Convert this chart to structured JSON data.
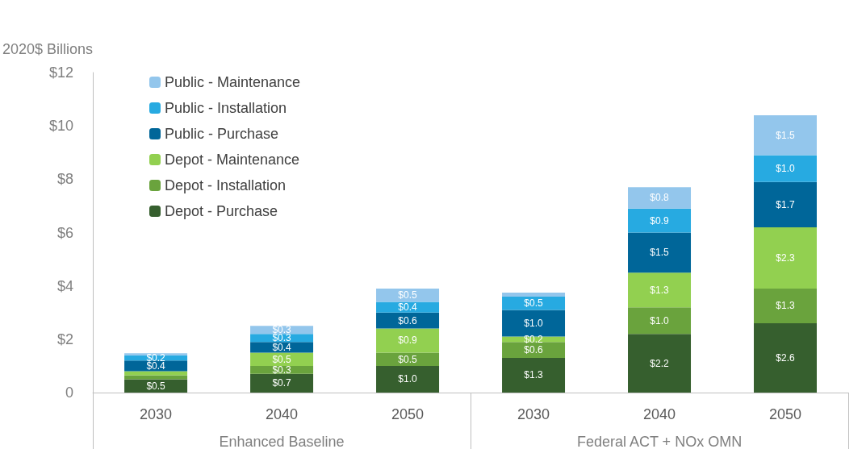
{
  "chart_data": {
    "type": "bar",
    "stacked": true,
    "ylabel": "2020$ Billions",
    "categories": [
      "2030",
      "2040",
      "2050",
      "2030",
      "2040",
      "2050"
    ],
    "annotations": [
      "Enhanced Baseline",
      "Federal ACT + NOx OMN"
    ],
    "series": [
      {
        "name": "Depot - Purchase",
        "color": "#365f2e",
        "values": [
          0.5,
          0.7,
          1.0,
          1.3,
          2.2,
          2.6
        ],
        "value_labels": [
          "$0.5",
          "$0.7",
          "$1.0",
          "$1.3",
          "$2.2",
          "$2.6"
        ]
      },
      {
        "name": "Depot - Installation",
        "color": "#6aa33d",
        "values": [
          0.15,
          0.3,
          0.5,
          0.6,
          1.0,
          1.3
        ],
        "value_labels": [
          null,
          "$0.3",
          "$0.5",
          "$0.6",
          "$1.0",
          "$1.3"
        ]
      },
      {
        "name": "Depot - Maintenance",
        "color": "#92d050",
        "values": [
          0.15,
          0.5,
          0.9,
          0.2,
          1.3,
          2.3
        ],
        "value_labels": [
          null,
          "$0.5",
          "$0.9",
          "$0.2",
          "$1.3",
          "$2.3"
        ]
      },
      {
        "name": "Public - Purchase",
        "color": "#006699",
        "values": [
          0.4,
          0.4,
          0.6,
          1.0,
          1.5,
          1.7
        ],
        "value_labels": [
          "$0.4",
          "$0.4",
          "$0.6",
          "$1.0",
          "$1.5",
          "$1.7"
        ]
      },
      {
        "name": "Public - Installation",
        "color": "#27aae1",
        "values": [
          0.2,
          0.3,
          0.4,
          0.5,
          0.9,
          1.0
        ],
        "value_labels": [
          "$0.2",
          "$0.3",
          "$0.4",
          "$0.5",
          "$0.9",
          "$1.0"
        ]
      },
      {
        "name": "Public - Maintenance",
        "color": "#93c6ec",
        "values": [
          0.07,
          0.3,
          0.5,
          0.15,
          0.8,
          1.5
        ],
        "value_labels": [
          null,
          "$0.3",
          "$0.5",
          null,
          "$0.8",
          "$1.5"
        ]
      }
    ],
    "ylim": [
      0,
      12
    ],
    "yticks": [
      {
        "value": 0,
        "label": "0"
      },
      {
        "value": 2,
        "label": "$2"
      },
      {
        "value": 4,
        "label": "$4"
      },
      {
        "value": 6,
        "label": "$6"
      },
      {
        "value": 8,
        "label": "$8"
      },
      {
        "value": 10,
        "label": "$10"
      },
      {
        "value": 12,
        "label": "$12"
      }
    ],
    "grid": false,
    "legend": "top left"
  }
}
